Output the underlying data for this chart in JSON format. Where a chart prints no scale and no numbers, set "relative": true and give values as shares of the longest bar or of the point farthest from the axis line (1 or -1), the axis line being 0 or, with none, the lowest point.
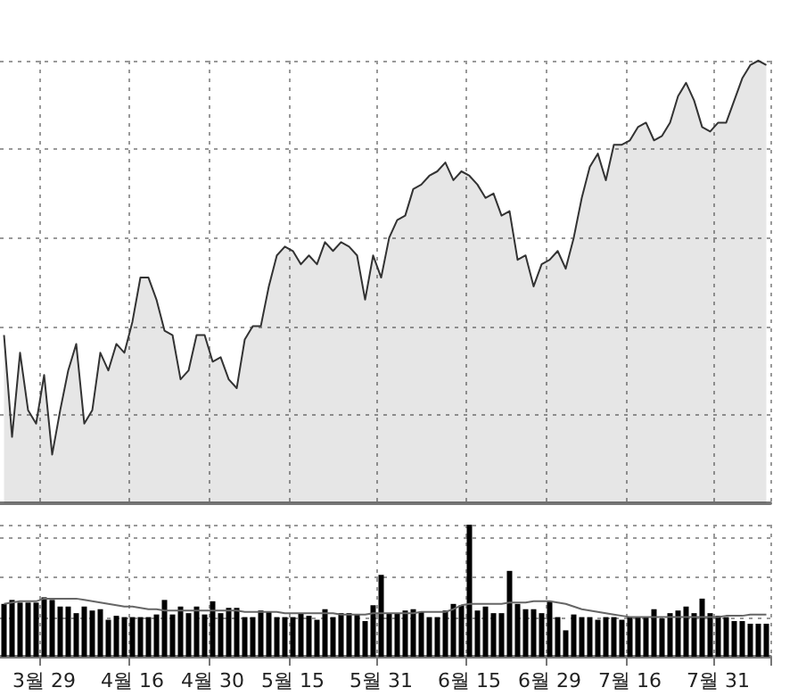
{
  "chart_data": [
    {
      "type": "area",
      "relative": true,
      "grid": true,
      "tick_labels": false,
      "color": "#333333",
      "categories": [
        null,
        null,
        null,
        null,
        null,
        null,
        null,
        null,
        null,
        null,
        null,
        null,
        null,
        null,
        null,
        null,
        null,
        null,
        null,
        null,
        null,
        null,
        null,
        null,
        null,
        null,
        null,
        null,
        null,
        null,
        null,
        null,
        null,
        null,
        null,
        null,
        null,
        null,
        null,
        null,
        null,
        null,
        null,
        null,
        null,
        null,
        null,
        null,
        null,
        null,
        null,
        null,
        null,
        null,
        null,
        null,
        null,
        null,
        null,
        null,
        null,
        null,
        null,
        null,
        null,
        null,
        null,
        null,
        null,
        null,
        null,
        null,
        null,
        null,
        null,
        null,
        null,
        null,
        null,
        null,
        null,
        null,
        null,
        null,
        null,
        null,
        null,
        null,
        null,
        null,
        null,
        null,
        null,
        null,
        null,
        null
      ],
      "values": [
        0.38,
        0.15,
        0.34,
        0.21,
        0.18,
        0.29,
        0.11,
        0.21,
        0.3,
        0.36,
        0.18,
        0.21,
        0.34,
        0.3,
        0.36,
        0.34,
        0.41,
        0.51,
        0.51,
        0.46,
        0.39,
        0.38,
        0.28,
        0.3,
        0.38,
        0.38,
        0.32,
        0.33,
        0.28,
        0.26,
        0.37,
        0.4,
        0.4,
        0.49,
        0.56,
        0.58,
        0.57,
        0.54,
        0.56,
        0.54,
        0.59,
        0.57,
        0.59,
        0.58,
        0.56,
        0.46,
        0.56,
        0.51,
        0.6,
        0.64,
        0.65,
        0.71,
        0.72,
        0.74,
        0.75,
        0.77,
        0.73,
        0.75,
        0.74,
        0.72,
        0.69,
        0.7,
        0.65,
        0.66,
        0.55,
        0.56,
        0.49,
        0.54,
        0.55,
        0.57,
        0.53,
        0.6,
        0.69,
        0.76,
        0.79,
        0.73,
        0.81,
        0.81,
        0.82,
        0.85,
        0.86,
        0.82,
        0.83,
        0.86,
        0.92,
        0.95,
        0.91,
        0.85,
        0.84,
        0.86,
        0.86,
        0.91,
        0.96,
        0.99,
        1,
        0.99
      ]
    },
    {
      "type": "bar",
      "relative": true,
      "grid": true,
      "tick_labels": "x",
      "categories": [
        null,
        null,
        null,
        null,
        null,
        "3월 29",
        null,
        null,
        null,
        null,
        null,
        null,
        null,
        null,
        null,
        null,
        "4월 16",
        null,
        null,
        null,
        null,
        null,
        null,
        null,
        null,
        null,
        "4월 30",
        null,
        null,
        null,
        null,
        null,
        null,
        null,
        null,
        null,
        "5월 15",
        null,
        null,
        null,
        null,
        null,
        null,
        null,
        null,
        null,
        null,
        "5월 31",
        null,
        null,
        null,
        null,
        null,
        null,
        null,
        null,
        null,
        null,
        "6월 15",
        null,
        null,
        null,
        null,
        null,
        null,
        null,
        null,
        null,
        "6월 29",
        null,
        null,
        null,
        null,
        null,
        null,
        null,
        null,
        null,
        "7월 16",
        null,
        null,
        null,
        null,
        null,
        null,
        null,
        null,
        null,
        null,
        "7월 31",
        null,
        null,
        null,
        null,
        null,
        null
      ],
      "series": [
        {
          "type": "bar",
          "color": "#000000",
          "values": [
            0.4,
            0.43,
            0.41,
            0.41,
            0.41,
            0.45,
            0.43,
            0.38,
            0.38,
            0.33,
            0.38,
            0.35,
            0.36,
            0.28,
            0.31,
            0.3,
            0.3,
            0.3,
            0.3,
            0.32,
            0.43,
            0.32,
            0.38,
            0.33,
            0.38,
            0.32,
            0.42,
            0.33,
            0.37,
            0.37,
            0.3,
            0.3,
            0.35,
            0.34,
            0.3,
            0.3,
            0.3,
            0.33,
            0.31,
            0.28,
            0.36,
            0.3,
            0.33,
            0.33,
            0.32,
            0.27,
            0.39,
            0.62,
            0.33,
            0.33,
            0.35,
            0.36,
            0.34,
            0.3,
            0.3,
            0.35,
            0.4,
            0.39,
            1,
            0.35,
            0.38,
            0.33,
            0.33,
            0.65,
            0.4,
            0.36,
            0.36,
            0.33,
            0.42,
            0.3,
            0.2,
            0.32,
            0.3,
            0.3,
            0.28,
            0.3,
            0.3,
            0.28,
            0.3,
            0.3,
            0.3,
            0.36,
            0.29,
            0.33,
            0.35,
            0.38,
            0.33,
            0.44,
            0.33,
            0.31,
            0.3,
            0.27,
            0.27,
            0.25,
            0.25,
            0.25
          ]
        },
        {
          "type": "line",
          "color": "#666666",
          "values": [
            0.4,
            0.41,
            0.42,
            0.42,
            0.42,
            0.44,
            0.44,
            0.44,
            0.44,
            0.44,
            0.43,
            0.42,
            0.41,
            0.4,
            0.39,
            0.38,
            0.38,
            0.37,
            0.36,
            0.36,
            0.35,
            0.35,
            0.35,
            0.35,
            0.35,
            0.35,
            0.35,
            0.35,
            0.35,
            0.35,
            0.34,
            0.34,
            0.34,
            0.34,
            0.34,
            0.33,
            0.33,
            0.33,
            0.33,
            0.33,
            0.33,
            0.33,
            0.32,
            0.32,
            0.32,
            0.32,
            0.33,
            0.33,
            0.33,
            0.33,
            0.33,
            0.33,
            0.34,
            0.34,
            0.34,
            0.34,
            0.36,
            0.39,
            0.4,
            0.4,
            0.4,
            0.4,
            0.4,
            0.41,
            0.41,
            0.41,
            0.42,
            0.42,
            0.42,
            0.41,
            0.4,
            0.38,
            0.36,
            0.35,
            0.34,
            0.33,
            0.32,
            0.31,
            0.3,
            0.3,
            0.3,
            0.3,
            0.3,
            0.3,
            0.3,
            0.3,
            0.3,
            0.3,
            0.3,
            0.3,
            0.31,
            0.31,
            0.31,
            0.32,
            0.32,
            0.32
          ]
        }
      ]
    }
  ]
}
